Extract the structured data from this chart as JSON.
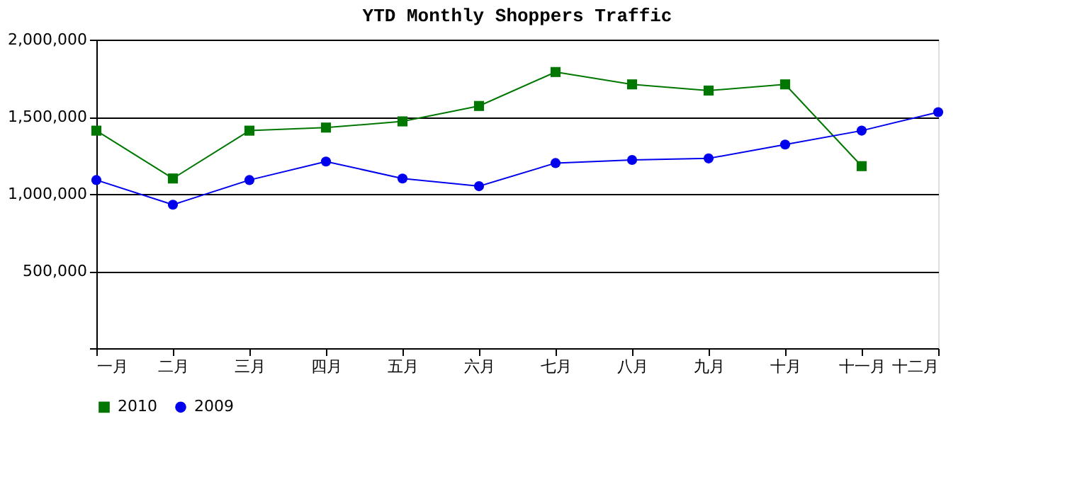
{
  "chart_data": {
    "type": "line",
    "title": "YTD Monthly Shoppers Traffic",
    "categories": [
      "一月",
      "二月",
      "三月",
      "四月",
      "五月",
      "六月",
      "七月",
      "八月",
      "九月",
      "十月",
      "十一月",
      "十二月"
    ],
    "series": [
      {
        "name": "2010",
        "color": "#007700",
        "marker": "square",
        "values": [
          1410000,
          1100000,
          1410000,
          1430000,
          1470000,
          1570000,
          1790000,
          1710000,
          1670000,
          1710000,
          1180000,
          null
        ]
      },
      {
        "name": "2009",
        "color": "#0000ee",
        "marker": "circle",
        "values": [
          1090000,
          930000,
          1090000,
          1210000,
          1100000,
          1050000,
          1200000,
          1220000,
          1230000,
          1320000,
          1410000,
          1530000
        ]
      }
    ],
    "ylim": [
      0,
      2000000
    ],
    "yticks": [
      {
        "value": 0,
        "label": null
      },
      {
        "value": 500000,
        "label": "500,000"
      },
      {
        "value": 1000000,
        "label": "1,000,000"
      },
      {
        "value": 1500000,
        "label": "1,500,000"
      },
      {
        "value": 2000000,
        "label": "2,000,000"
      }
    ],
    "grid": "y",
    "legend": "bottom",
    "line_style": "solid"
  }
}
